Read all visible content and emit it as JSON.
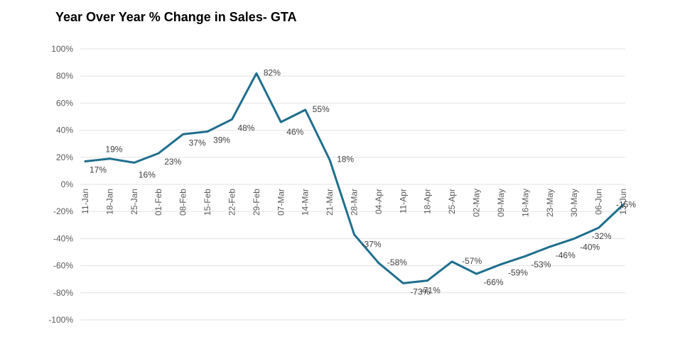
{
  "chart_data": {
    "type": "line",
    "title": "Year Over Year % Change in Sales- GTA",
    "xlabel": "",
    "ylabel": "",
    "ylim": [
      -100,
      100
    ],
    "y_ticks": [
      "100%",
      "80%",
      "60%",
      "40%",
      "20%",
      "0%",
      "-20%",
      "-40%",
      "-60%",
      "-80%",
      "-100%"
    ],
    "y_tick_values": [
      100,
      80,
      60,
      40,
      20,
      0,
      -20,
      -40,
      -60,
      -80,
      -100
    ],
    "categories": [
      "11-Jan",
      "18-Jan",
      "25-Jan",
      "01-Feb",
      "08-Feb",
      "15-Feb",
      "22-Feb",
      "29-Feb",
      "07-Mar",
      "14-Mar",
      "21-Mar",
      "28-Mar",
      "04-Apr",
      "11-Apr",
      "18-Apr",
      "25-Apr",
      "02-May",
      "09-May",
      "16-May",
      "23-May",
      "30-May",
      "06-Jun",
      "13-Jun"
    ],
    "values": [
      17,
      19,
      16,
      23,
      37,
      39,
      48,
      82,
      46,
      55,
      18,
      -37,
      -58,
      -73,
      -71,
      -57,
      -66,
      -59,
      -53,
      -46,
      -40,
      -32,
      -15
    ],
    "data_labels": [
      "17%",
      "19%",
      "16%",
      "23%",
      "37%",
      "39%",
      "48%",
      "82%",
      "46%",
      "55%",
      "18%",
      "-37%",
      "-58%",
      "-73%",
      "-71%",
      "-57%",
      "-66%",
      "-59%",
      "-53%",
      "-46%",
      "-40%",
      "-32%",
      "-15%"
    ],
    "grid": true,
    "line_color": "#1f6e8c"
  }
}
